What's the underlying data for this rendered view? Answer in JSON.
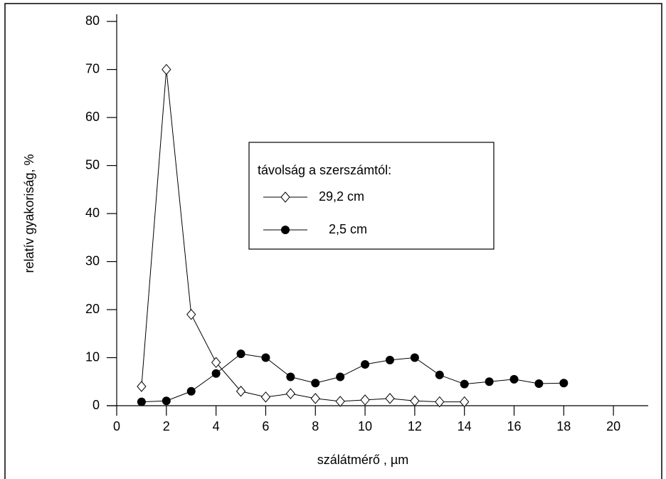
{
  "chart_data": {
    "type": "line",
    "x_label": "szálátmérő , µm",
    "y_label": "relatív gyakoriság, %",
    "legend_title": "távolság a szerszámtól:",
    "series": [
      {
        "name": "29,2 cm",
        "color": "#000000",
        "marker": "diamond",
        "x": [
          1,
          2,
          3,
          4,
          5,
          6,
          7,
          8,
          9,
          10,
          11,
          12,
          13,
          14
        ],
        "values": [
          4,
          70,
          19,
          9,
          3,
          1.8,
          2.5,
          1.5,
          0.9,
          1.2,
          1.5,
          1,
          0.8,
          0.8
        ]
      },
      {
        "name": "2,5 cm",
        "color": "#000000",
        "marker": "circle",
        "x": [
          1,
          2,
          3,
          4,
          5,
          6,
          7,
          8,
          9,
          10,
          11,
          12,
          13,
          14,
          15,
          16,
          17,
          18
        ],
        "values": [
          0.8,
          1,
          3,
          6.7,
          10.8,
          10,
          6,
          4.7,
          6,
          8.6,
          9.5,
          10,
          6.4,
          4.5,
          5,
          5.5,
          4.6,
          4.7
        ]
      }
    ],
    "xlim": [
      0,
      21.4
    ],
    "xticks": [
      0,
      2,
      4,
      6,
      8,
      10,
      12,
      14,
      16,
      18,
      20
    ],
    "ylim": [
      0,
      81.5
    ],
    "yticks": [
      0,
      10,
      20,
      30,
      40,
      50,
      60,
      70,
      80
    ],
    "grid": false
  }
}
